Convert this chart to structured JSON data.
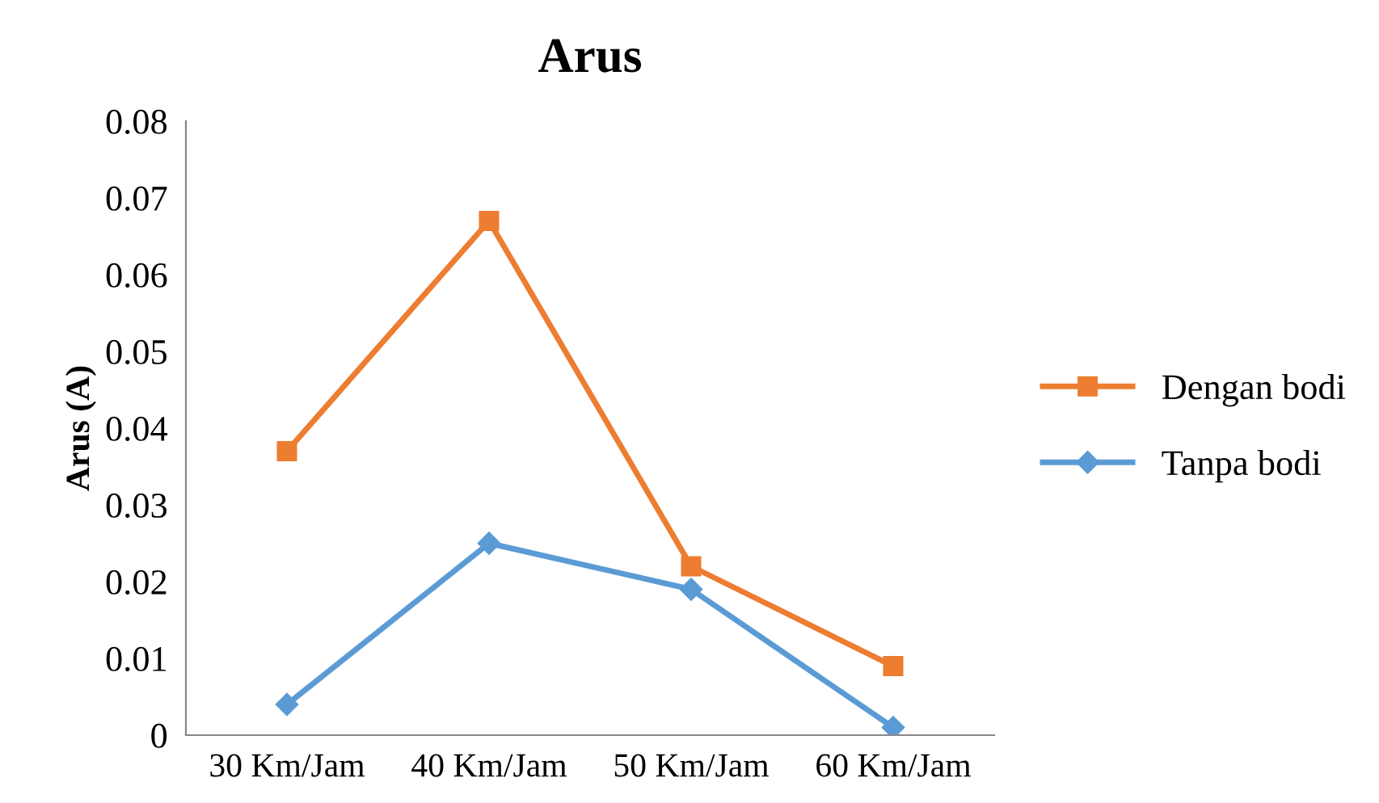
{
  "chart_data": {
    "type": "line",
    "title": "Arus",
    "ylabel": "Arus (A)",
    "categories": [
      "30 Km/Jam",
      "40 Km/Jam",
      "50 Km/Jam",
      "60 Km/Jam"
    ],
    "series": [
      {
        "name": "Dengan bodi",
        "color": "#ed7d31",
        "marker": "square",
        "values": [
          0.037,
          0.067,
          0.022,
          0.009
        ]
      },
      {
        "name": "Tanpa bodi",
        "color": "#5b9bd5",
        "marker": "diamond",
        "values": [
          0.004,
          0.025,
          0.019,
          0.001
        ]
      }
    ],
    "ylim": [
      0,
      0.08
    ],
    "yticks": [
      0,
      0.01,
      0.02,
      0.03,
      0.04,
      0.05,
      0.06,
      0.07,
      0.08
    ],
    "grid": false,
    "legend": "right",
    "line_style": "solid"
  }
}
